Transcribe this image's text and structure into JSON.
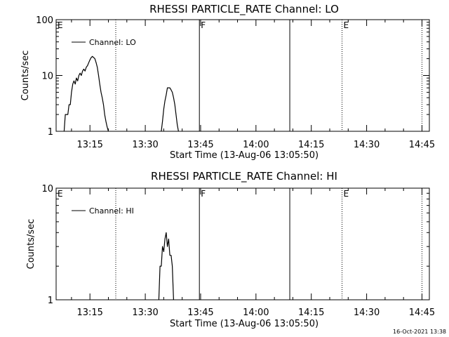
{
  "footer": "16-Oct-2021 13:38",
  "chart_data": [
    {
      "type": "line",
      "title": "RHESSI PARTICLE_RATE Channel: LO",
      "xlabel": "Start Time (13-Aug-06 13:05:50)",
      "ylabel": "Counts/sec",
      "yscale": "log",
      "ylim": [
        1,
        100
      ],
      "yticks": [
        {
          "value": 1,
          "label": "1"
        },
        {
          "value": 10,
          "label": "10"
        },
        {
          "value": 100,
          "label": "100"
        }
      ],
      "xlim": [
        "13:05:50",
        "14:47:00"
      ],
      "xticks": [
        "13:15",
        "13:30",
        "13:45",
        "14:00",
        "14:15",
        "14:30",
        "14:45"
      ],
      "legend": {
        "label": "Channel: LO",
        "position": "top-left"
      },
      "markers": [
        {
          "time": "13:05:50",
          "label": "E",
          "style": "none"
        },
        {
          "time": "13:22:00",
          "label": "",
          "style": "dotted"
        },
        {
          "time": "13:44:40",
          "label": "F",
          "style": "solid"
        },
        {
          "time": "14:09:10",
          "label": "",
          "style": "solid"
        },
        {
          "time": "14:23:20",
          "label": "E",
          "style": "dotted"
        },
        {
          "time": "14:45:00",
          "label": "",
          "style": "dotted"
        }
      ],
      "series": [
        {
          "name": "Channel: LO",
          "segments": [
            {
              "x": [
                "13:08:00",
                "13:08:20",
                "13:08:40",
                "13:09:00",
                "13:09:20",
                "13:09:40",
                "13:10:00",
                "13:10:20",
                "13:10:40",
                "13:11:00",
                "13:11:20",
                "13:11:40",
                "13:12:00",
                "13:12:20",
                "13:12:40",
                "13:13:00",
                "13:13:20",
                "13:13:40",
                "13:14:00",
                "13:14:20",
                "13:14:40",
                "13:15:00",
                "13:15:20",
                "13:15:40",
                "13:16:00",
                "13:16:20",
                "13:16:40",
                "13:17:00",
                "13:17:20",
                "13:17:40",
                "13:18:00",
                "13:18:20",
                "13:18:40",
                "13:19:00",
                "13:19:20",
                "13:19:40",
                "13:20:00"
              ],
              "y": [
                1,
                2,
                2,
                2,
                3,
                3,
                5,
                7,
                8,
                7,
                9,
                8,
                10,
                11,
                10,
                12,
                13,
                12,
                14,
                15,
                17,
                19,
                21,
                22,
                21,
                20,
                17,
                14,
                10,
                7,
                5,
                4,
                3,
                2,
                1.5,
                1.2,
                1
              ]
            },
            {
              "x": [
                "13:34:20",
                "13:34:40",
                "13:35:00",
                "13:35:20",
                "13:35:40",
                "13:36:00",
                "13:36:20",
                "13:36:40",
                "13:37:00",
                "13:37:20",
                "13:37:40",
                "13:38:00",
                "13:38:20",
                "13:38:40",
                "13:39:00"
              ],
              "y": [
                1,
                1.5,
                2.5,
                3.5,
                4.5,
                6,
                6,
                6,
                5.5,
                5,
                4,
                3,
                2,
                1.3,
                1
              ]
            }
          ]
        }
      ]
    },
    {
      "type": "line",
      "title": "RHESSI PARTICLE_RATE Channel: HI",
      "xlabel": "Start Time (13-Aug-06 13:05:50)",
      "ylabel": "Counts/sec",
      "yscale": "log",
      "ylim": [
        1,
        10
      ],
      "yticks": [
        {
          "value": 1,
          "label": "1"
        },
        {
          "value": 10,
          "label": "10"
        }
      ],
      "xlim": [
        "13:05:50",
        "14:47:00"
      ],
      "xticks": [
        "13:15",
        "13:30",
        "13:45",
        "14:00",
        "14:15",
        "14:30",
        "14:45"
      ],
      "legend": {
        "label": "Channel: HI",
        "position": "top-left"
      },
      "markers": [
        {
          "time": "13:05:50",
          "label": "E",
          "style": "none"
        },
        {
          "time": "13:22:00",
          "label": "",
          "style": "dotted"
        },
        {
          "time": "13:44:40",
          "label": "F",
          "style": "solid"
        },
        {
          "time": "14:09:10",
          "label": "",
          "style": "solid"
        },
        {
          "time": "14:23:20",
          "label": "E",
          "style": "dotted"
        },
        {
          "time": "14:45:00",
          "label": "",
          "style": "dotted"
        }
      ],
      "series": [
        {
          "name": "Channel: HI",
          "segments": [
            {
              "x": [
                "13:33:40",
                "13:34:00",
                "13:34:20",
                "13:34:40",
                "13:35:00",
                "13:35:20",
                "13:35:40",
                "13:36:00",
                "13:36:20",
                "13:36:40",
                "13:37:00",
                "13:37:20",
                "13:37:40"
              ],
              "y": [
                1,
                2,
                2,
                3,
                2.7,
                3.5,
                4,
                3,
                3.5,
                2.5,
                2.5,
                2,
                1
              ]
            }
          ]
        }
      ]
    }
  ]
}
